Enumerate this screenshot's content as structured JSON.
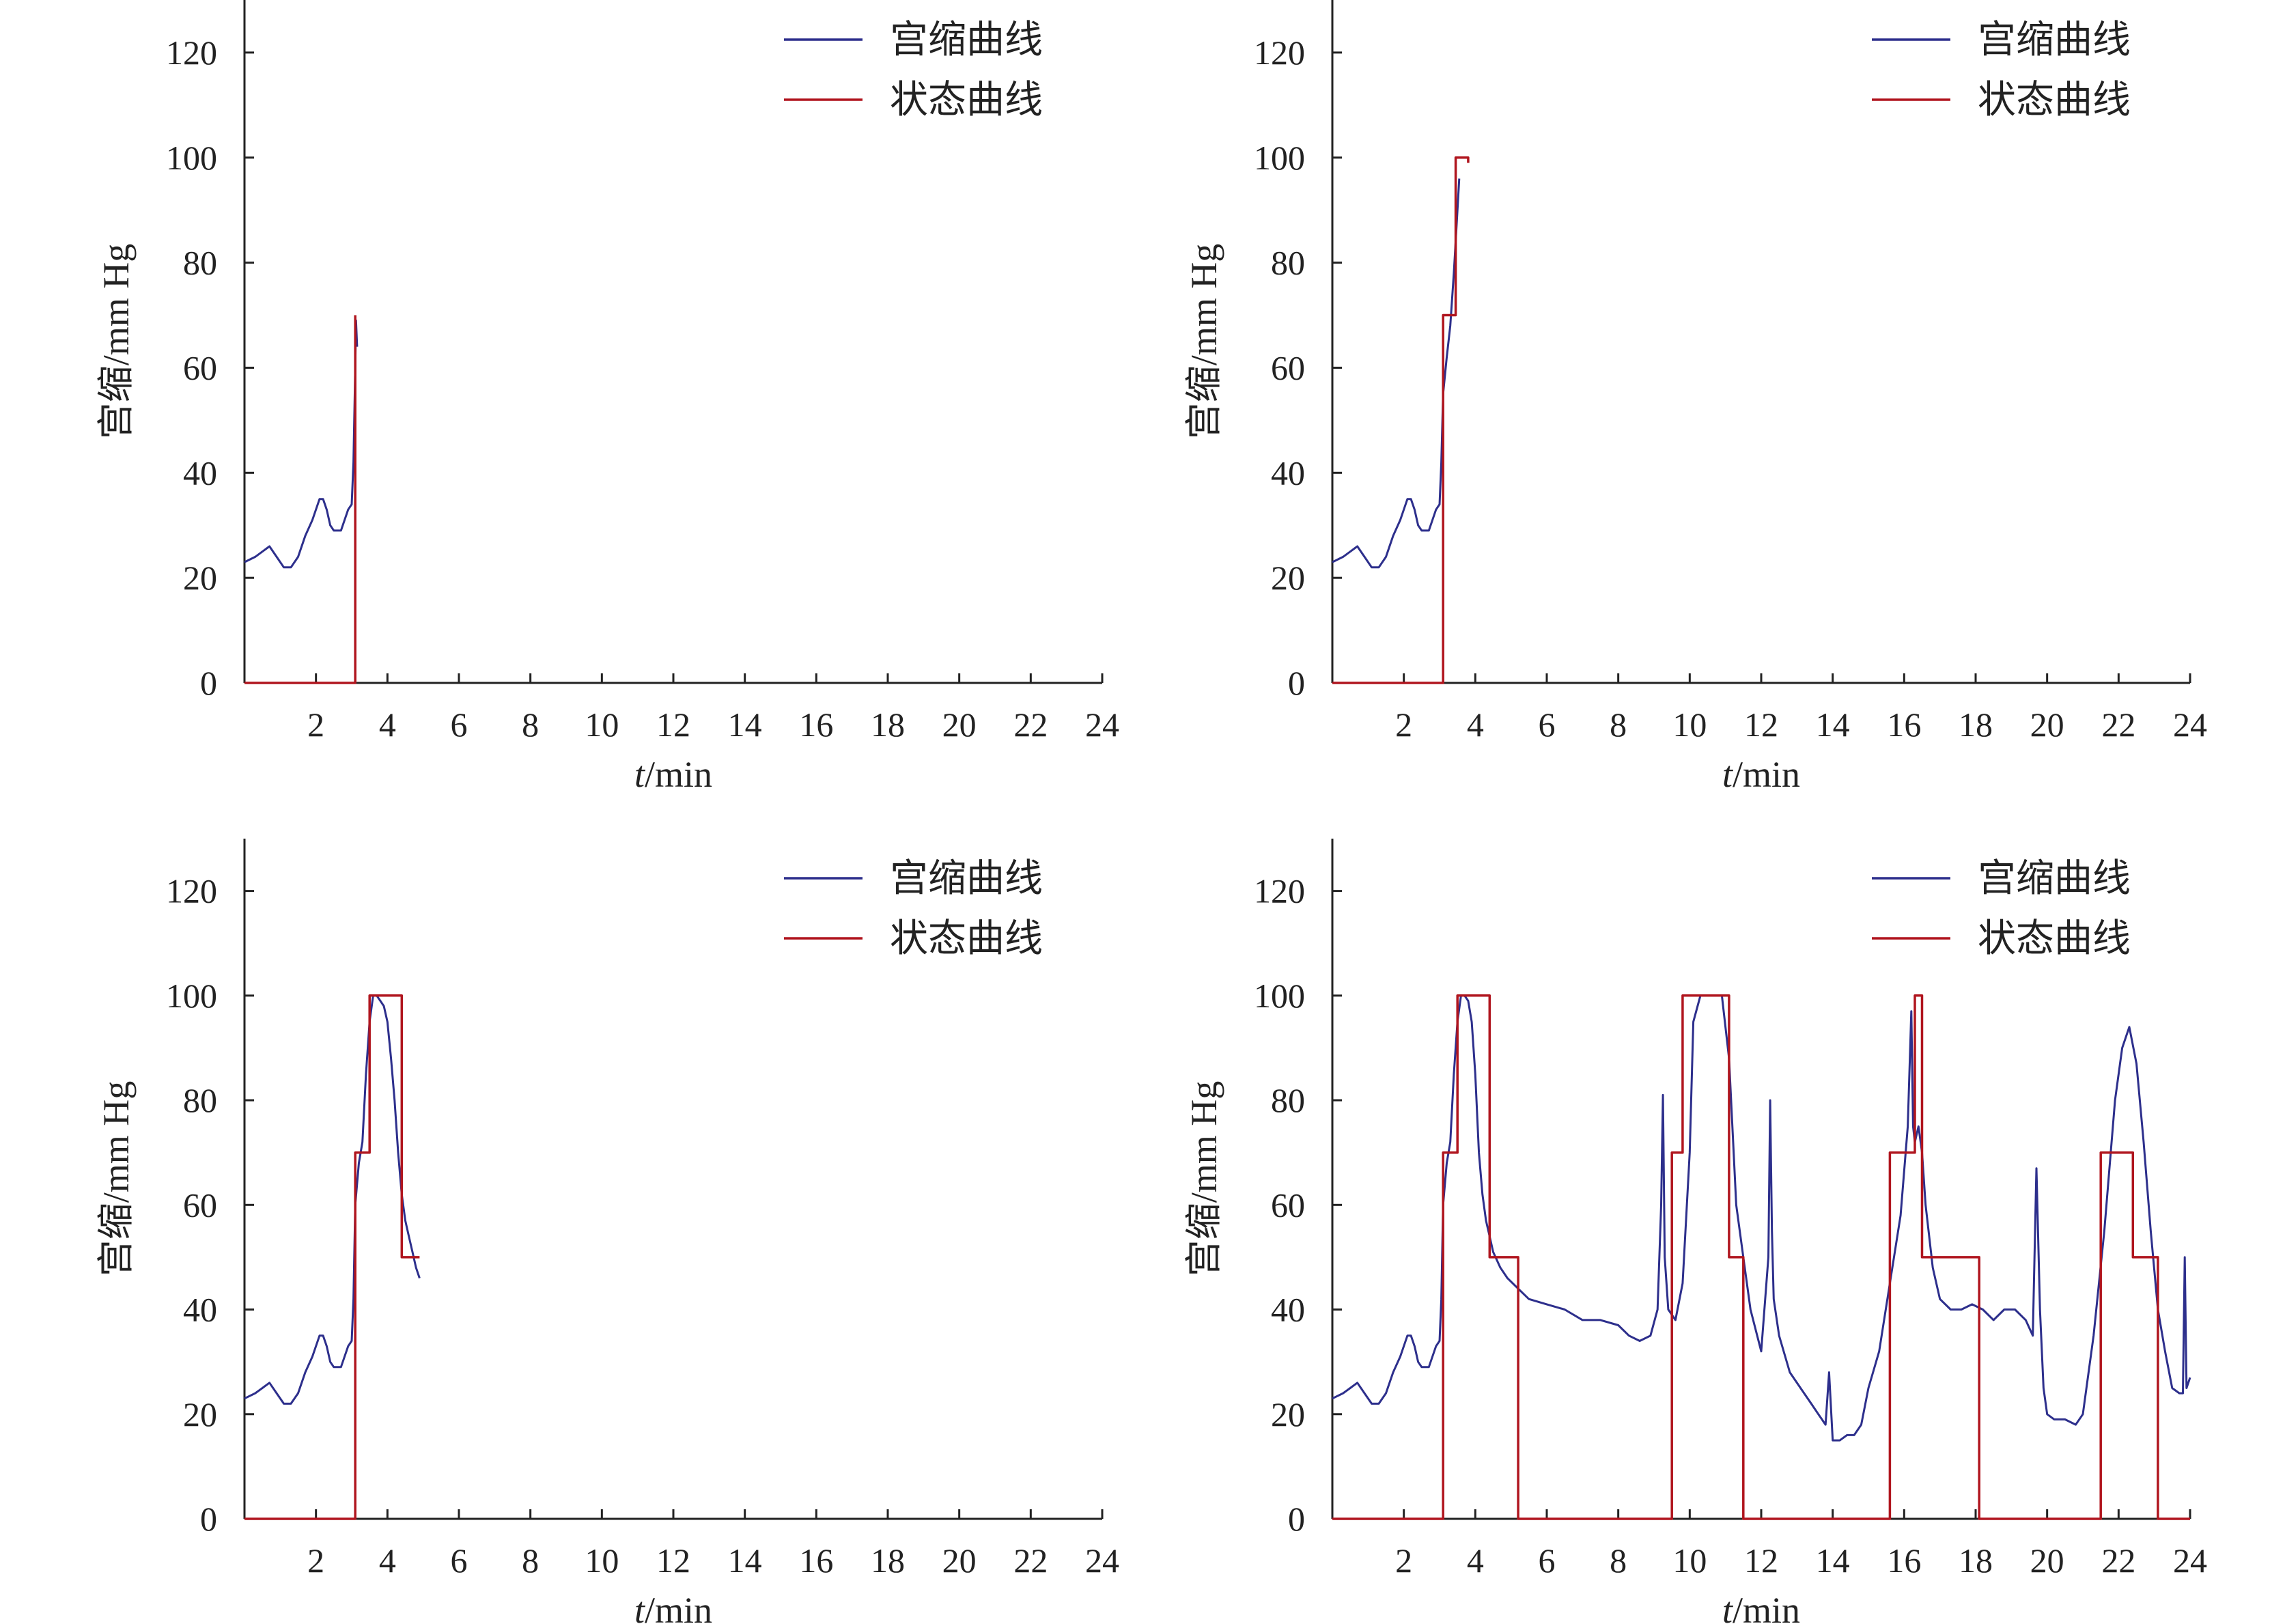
{
  "colors": {
    "contraction": "#2d2f8c",
    "state": "#b0151e",
    "axis": "#222222"
  },
  "chart_data": [
    {
      "type": "line",
      "panel": "top-left",
      "xlabel_var": "t",
      "xlabel_unit": "/min",
      "ylabel": "宫缩/mm Hg",
      "xlim": [
        0,
        24
      ],
      "ylim": [
        0,
        130
      ],
      "xticks": [
        2,
        4,
        6,
        8,
        10,
        12,
        14,
        16,
        18,
        20,
        22,
        24
      ],
      "yticks": [
        0,
        20,
        40,
        60,
        80,
        100,
        120
      ],
      "legend_position": "top-right",
      "series": [
        {
          "name": "宫缩曲线",
          "x": [
            0,
            0.3,
            0.5,
            0.7,
            0.9,
            1.1,
            1.3,
            1.5,
            1.7,
            1.9,
            2.1,
            2.2,
            2.3,
            2.4,
            2.5,
            2.7,
            2.9,
            3.0,
            3.05,
            3.1,
            3.12,
            3.15
          ],
          "y": [
            23,
            24,
            25,
            26,
            24,
            22,
            22,
            24,
            28,
            31,
            35,
            35,
            33,
            30,
            29,
            29,
            33,
            34,
            42,
            60,
            69,
            64
          ]
        },
        {
          "name": "状态曲线",
          "x": [
            0,
            3.1,
            3.1
          ],
          "y": [
            0,
            0,
            70
          ]
        }
      ]
    },
    {
      "type": "line",
      "panel": "top-right",
      "xlabel_var": "t",
      "xlabel_unit": "/min",
      "ylabel": "宫缩/mm Hg",
      "xlim": [
        0,
        24
      ],
      "ylim": [
        0,
        130
      ],
      "xticks": [
        2,
        4,
        6,
        8,
        10,
        12,
        14,
        16,
        18,
        20,
        22,
        24
      ],
      "yticks": [
        0,
        20,
        40,
        60,
        80,
        100,
        120
      ],
      "legend_position": "top-right",
      "series": [
        {
          "name": "宫缩曲线",
          "x": [
            0,
            0.3,
            0.5,
            0.7,
            0.9,
            1.1,
            1.3,
            1.5,
            1.7,
            1.9,
            2.1,
            2.2,
            2.3,
            2.4,
            2.5,
            2.7,
            2.9,
            3.0,
            3.05,
            3.1,
            3.2,
            3.3,
            3.4,
            3.5,
            3.55
          ],
          "y": [
            23,
            24,
            25,
            26,
            24,
            22,
            22,
            24,
            28,
            31,
            35,
            35,
            33,
            30,
            29,
            29,
            33,
            34,
            42,
            55,
            62,
            68,
            78,
            90,
            96
          ]
        },
        {
          "name": "状态曲线",
          "x": [
            0,
            3.1,
            3.1,
            3.45,
            3.45,
            3.8,
            3.8
          ],
          "y": [
            0,
            0,
            70,
            70,
            100,
            100,
            99
          ]
        }
      ]
    },
    {
      "type": "line",
      "panel": "bottom-left",
      "xlabel_var": "t",
      "xlabel_unit": "/min",
      "ylabel": "宫缩/mm Hg",
      "xlim": [
        0,
        24
      ],
      "ylim": [
        0,
        130
      ],
      "xticks": [
        2,
        4,
        6,
        8,
        10,
        12,
        14,
        16,
        18,
        20,
        22,
        24
      ],
      "yticks": [
        0,
        20,
        40,
        60,
        80,
        100,
        120
      ],
      "legend_position": "top-right",
      "series": [
        {
          "name": "宫缩曲线",
          "x": [
            0,
            0.3,
            0.5,
            0.7,
            0.9,
            1.1,
            1.3,
            1.5,
            1.7,
            1.9,
            2.1,
            2.2,
            2.3,
            2.4,
            2.5,
            2.7,
            2.9,
            3.0,
            3.05,
            3.1,
            3.2,
            3.3,
            3.4,
            3.5,
            3.6,
            3.7,
            3.8,
            3.9,
            4.0,
            4.1,
            4.2,
            4.3,
            4.4,
            4.5,
            4.6,
            4.7,
            4.8,
            4.9
          ],
          "y": [
            23,
            24,
            25,
            26,
            24,
            22,
            22,
            24,
            28,
            31,
            35,
            35,
            33,
            30,
            29,
            29,
            33,
            34,
            42,
            60,
            68,
            72,
            85,
            95,
            100,
            100,
            99,
            98,
            95,
            88,
            80,
            70,
            62,
            57,
            54,
            51,
            48,
            46
          ]
        },
        {
          "name": "状态曲线",
          "x": [
            0,
            3.1,
            3.1,
            3.5,
            3.5,
            4.4,
            4.4,
            4.9
          ],
          "y": [
            0,
            0,
            70,
            70,
            100,
            100,
            50,
            50
          ]
        }
      ]
    },
    {
      "type": "line",
      "panel": "bottom-right",
      "xlabel_var": "t",
      "xlabel_unit": "/min",
      "ylabel": "宫缩/mm Hg",
      "xlim": [
        0,
        24
      ],
      "ylim": [
        0,
        130
      ],
      "xticks": [
        2,
        4,
        6,
        8,
        10,
        12,
        14,
        16,
        18,
        20,
        22,
        24
      ],
      "yticks": [
        0,
        20,
        40,
        60,
        80,
        100,
        120
      ],
      "legend_position": "top-right",
      "series": [
        {
          "name": "宫缩曲线",
          "x": [
            0,
            0.3,
            0.5,
            0.7,
            0.9,
            1.1,
            1.3,
            1.5,
            1.7,
            1.9,
            2.1,
            2.2,
            2.3,
            2.4,
            2.5,
            2.7,
            2.9,
            3.0,
            3.05,
            3.1,
            3.2,
            3.3,
            3.4,
            3.5,
            3.6,
            3.7,
            3.8,
            3.9,
            4.0,
            4.1,
            4.2,
            4.3,
            4.4,
            4.5,
            4.7,
            4.9,
            5.2,
            5.5,
            6.0,
            6.5,
            7.0,
            7.5,
            8.0,
            8.3,
            8.6,
            8.9,
            9.1,
            9.2,
            9.25,
            9.3,
            9.4,
            9.6,
            9.8,
            10.0,
            10.1,
            10.3,
            10.6,
            10.9,
            11.1,
            11.3,
            11.5,
            11.7,
            12.0,
            12.2,
            12.25,
            12.3,
            12.35,
            12.5,
            12.8,
            13.1,
            13.4,
            13.6,
            13.8,
            13.9,
            14.0,
            14.2,
            14.4,
            14.6,
            14.8,
            15.0,
            15.3,
            15.6,
            15.9,
            16.1,
            16.2,
            16.25,
            16.3,
            16.4,
            16.5,
            16.6,
            16.8,
            17.0,
            17.3,
            17.6,
            17.9,
            18.2,
            18.5,
            18.8,
            19.1,
            19.4,
            19.6,
            19.7,
            19.8,
            19.9,
            20.0,
            20.2,
            20.5,
            20.8,
            21.0,
            21.3,
            21.6,
            21.9,
            22.1,
            22.3,
            22.5,
            22.7,
            22.9,
            23.1,
            23.3,
            23.5,
            23.7,
            23.8,
            23.85,
            23.9,
            24.0
          ],
          "y": [
            23,
            24,
            25,
            26,
            24,
            22,
            22,
            24,
            28,
            31,
            35,
            35,
            33,
            30,
            29,
            29,
            33,
            34,
            42,
            60,
            68,
            72,
            85,
            95,
            100,
            100,
            99,
            95,
            85,
            70,
            62,
            57,
            54,
            51,
            48,
            46,
            44,
            42,
            41,
            40,
            38,
            38,
            37,
            35,
            34,
            35,
            40,
            60,
            81,
            50,
            40,
            38,
            45,
            70,
            95,
            100,
            100,
            100,
            88,
            60,
            50,
            40,
            32,
            50,
            80,
            55,
            42,
            35,
            28,
            25,
            22,
            20,
            18,
            28,
            15,
            15,
            16,
            16,
            18,
            25,
            32,
            45,
            58,
            75,
            97,
            75,
            72,
            75,
            70,
            60,
            48,
            42,
            40,
            40,
            41,
            40,
            38,
            40,
            40,
            38,
            35,
            67,
            40,
            25,
            20,
            19,
            19,
            18,
            20,
            35,
            55,
            80,
            90,
            94,
            87,
            72,
            55,
            40,
            32,
            25,
            24,
            24,
            50,
            25,
            27
          ]
        },
        {
          "name": "状态曲线",
          "x": [
            0,
            3.1,
            3.1,
            3.5,
            3.5,
            4.4,
            4.4,
            5.2,
            5.2,
            9.5,
            9.5,
            9.8,
            9.8,
            11.1,
            11.1,
            11.5,
            11.5,
            15.6,
            15.6,
            16.3,
            16.3,
            16.5,
            16.5,
            18.1,
            18.1,
            21.5,
            21.5,
            22.4,
            22.4,
            23.1,
            23.1,
            24
          ],
          "y": [
            0,
            0,
            70,
            70,
            100,
            100,
            50,
            50,
            0,
            0,
            70,
            70,
            100,
            100,
            50,
            50,
            0,
            0,
            70,
            70,
            100,
            100,
            50,
            50,
            0,
            0,
            70,
            70,
            50,
            50,
            0,
            0
          ]
        }
      ]
    }
  ]
}
